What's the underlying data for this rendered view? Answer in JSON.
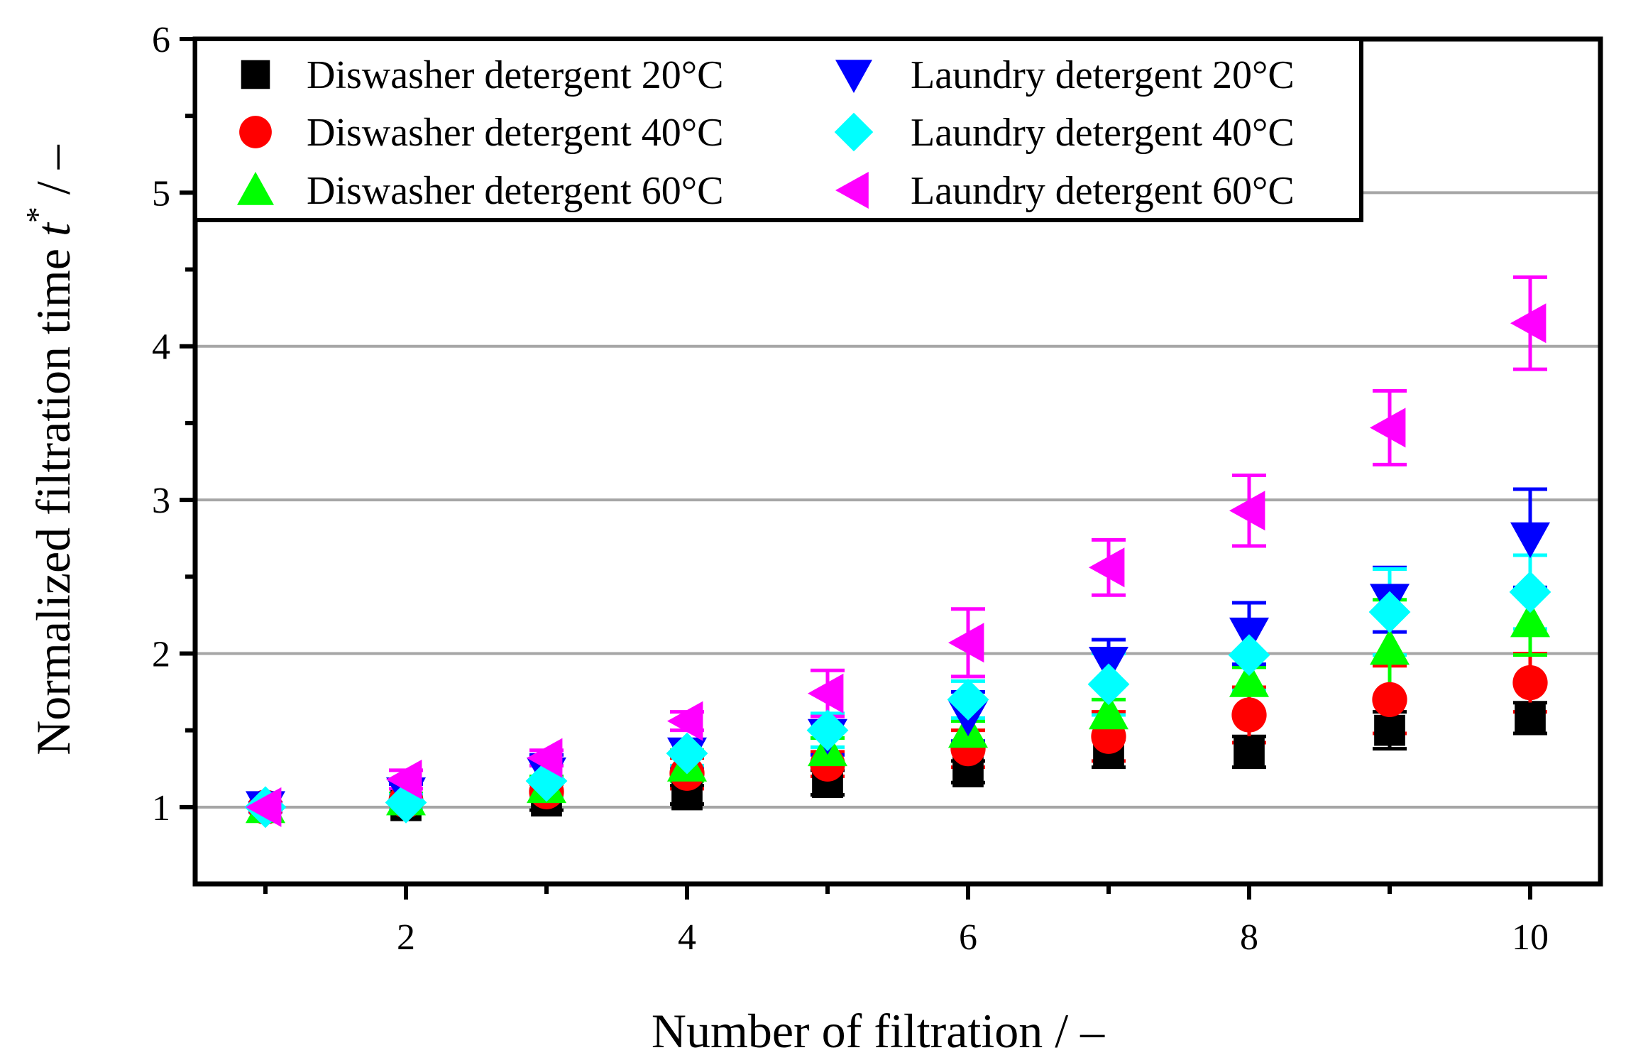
{
  "chart_data": {
    "type": "scatter",
    "title": "",
    "xlabel": "Number of filtration / –",
    "ylabel_main": "Normalized filtration time ",
    "ylabel_var": "t",
    "ylabel_sup": "*",
    "ylabel_tail": " / –",
    "xlim": [
      0.5,
      10.5
    ],
    "ylim": [
      0.5,
      6
    ],
    "x_major_ticks": [
      2,
      4,
      6,
      8,
      10
    ],
    "x_minor_ticks": [
      1,
      3,
      5,
      7,
      9
    ],
    "y_major_ticks": [
      1,
      2,
      3,
      4,
      5,
      6
    ],
    "y_minor_ticks": [
      1.5,
      2.5,
      3.5,
      4.5,
      5.5
    ],
    "x_tick_labels": [
      "2",
      "4",
      "6",
      "8",
      "10"
    ],
    "y_tick_labels": [
      "1",
      "2",
      "3",
      "4",
      "5",
      "6"
    ],
    "gridlines_y": [
      1,
      2,
      3,
      4,
      5
    ],
    "legend_position": "top-left",
    "x": [
      1,
      2,
      3,
      4,
      5,
      6,
      7,
      8,
      9,
      10
    ],
    "series": [
      {
        "name": "Diswasher detergent 20°C",
        "marker": "square",
        "color": "#000000",
        "values": [
          1.0,
          1.01,
          1.04,
          1.08,
          1.16,
          1.23,
          1.35,
          1.36,
          1.5,
          1.58
        ],
        "errors": [
          0.02,
          0.03,
          0.06,
          0.06,
          0.08,
          0.07,
          0.09,
          0.1,
          0.12,
          0.1
        ]
      },
      {
        "name": "Diswasher detergent 40°C",
        "marker": "circle",
        "color": "#ff0000",
        "values": [
          1.0,
          1.04,
          1.1,
          1.22,
          1.28,
          1.38,
          1.46,
          1.6,
          1.7,
          1.81
        ],
        "errors": [
          0.02,
          0.03,
          0.05,
          0.1,
          0.08,
          0.12,
          0.16,
          0.18,
          0.22,
          0.19
        ]
      },
      {
        "name": "Diswasher detergent 60°C",
        "marker": "triangle-up",
        "color": "#00ff00",
        "values": [
          1.0,
          1.05,
          1.13,
          1.27,
          1.37,
          1.49,
          1.61,
          1.82,
          2.03,
          2.21
        ],
        "errors": [
          0.02,
          0.04,
          0.07,
          0.1,
          0.08,
          0.07,
          0.09,
          0.09,
          0.32,
          0.22
        ]
      },
      {
        "name": "Laundry detergent 20°C",
        "marker": "triangle-down",
        "color": "#0000ff",
        "values": [
          1.0,
          1.09,
          1.22,
          1.35,
          1.47,
          1.59,
          1.94,
          2.13,
          2.35,
          2.75
        ],
        "errors": [
          0.03,
          0.06,
          0.12,
          0.09,
          0.13,
          0.16,
          0.15,
          0.2,
          0.21,
          0.32
        ]
      },
      {
        "name": "Laundry detergent 40°C",
        "marker": "diamond",
        "color": "#00ffff",
        "values": [
          1.0,
          1.03,
          1.17,
          1.35,
          1.5,
          1.7,
          1.8,
          1.99,
          2.27,
          2.4
        ],
        "errors": [
          0.02,
          0.05,
          0.1,
          0.08,
          0.11,
          0.12,
          0.2,
          0.23,
          0.28,
          0.24
        ]
      },
      {
        "name": "Laundry detergent 60°C",
        "marker": "triangle-left",
        "color": "#ff00ff",
        "values": [
          1.0,
          1.18,
          1.32,
          1.56,
          1.74,
          2.07,
          2.56,
          2.93,
          3.47,
          4.15
        ],
        "errors": [
          0.02,
          0.06,
          0.05,
          0.06,
          0.15,
          0.22,
          0.18,
          0.23,
          0.24,
          0.3
        ]
      }
    ]
  }
}
